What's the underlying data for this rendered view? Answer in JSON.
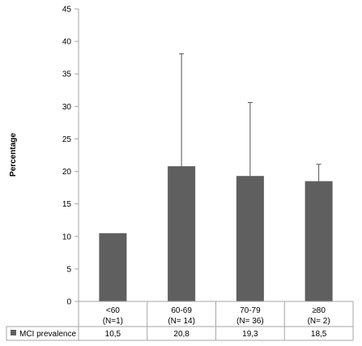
{
  "chart_data": {
    "type": "bar",
    "title": "",
    "xlabel": "",
    "ylabel": "Percentage",
    "ylim": [
      0,
      45
    ],
    "yticks": [
      "0",
      "5",
      "10",
      "15",
      "20",
      "25",
      "30",
      "35",
      "40",
      "45"
    ],
    "categories": [
      {
        "name": "<60",
        "n": "(N=1)"
      },
      {
        "name": "60-69",
        "n": "(N= 14)"
      },
      {
        "name": "70-79",
        "n": "(N= 36)"
      },
      {
        "name": "≥80",
        "n": "(N= 2)"
      }
    ],
    "series": [
      {
        "name": "MCI prevalence",
        "color": "#5f5f5f",
        "values": [
          10.5,
          20.8,
          19.3,
          18.5
        ],
        "value_labels": [
          "10,5",
          "20,8",
          "19,3",
          "18,5"
        ],
        "error_upper": [
          null,
          38.1,
          30.6,
          21.1
        ]
      }
    ],
    "grid": false,
    "legend_position": "data-table-left"
  }
}
